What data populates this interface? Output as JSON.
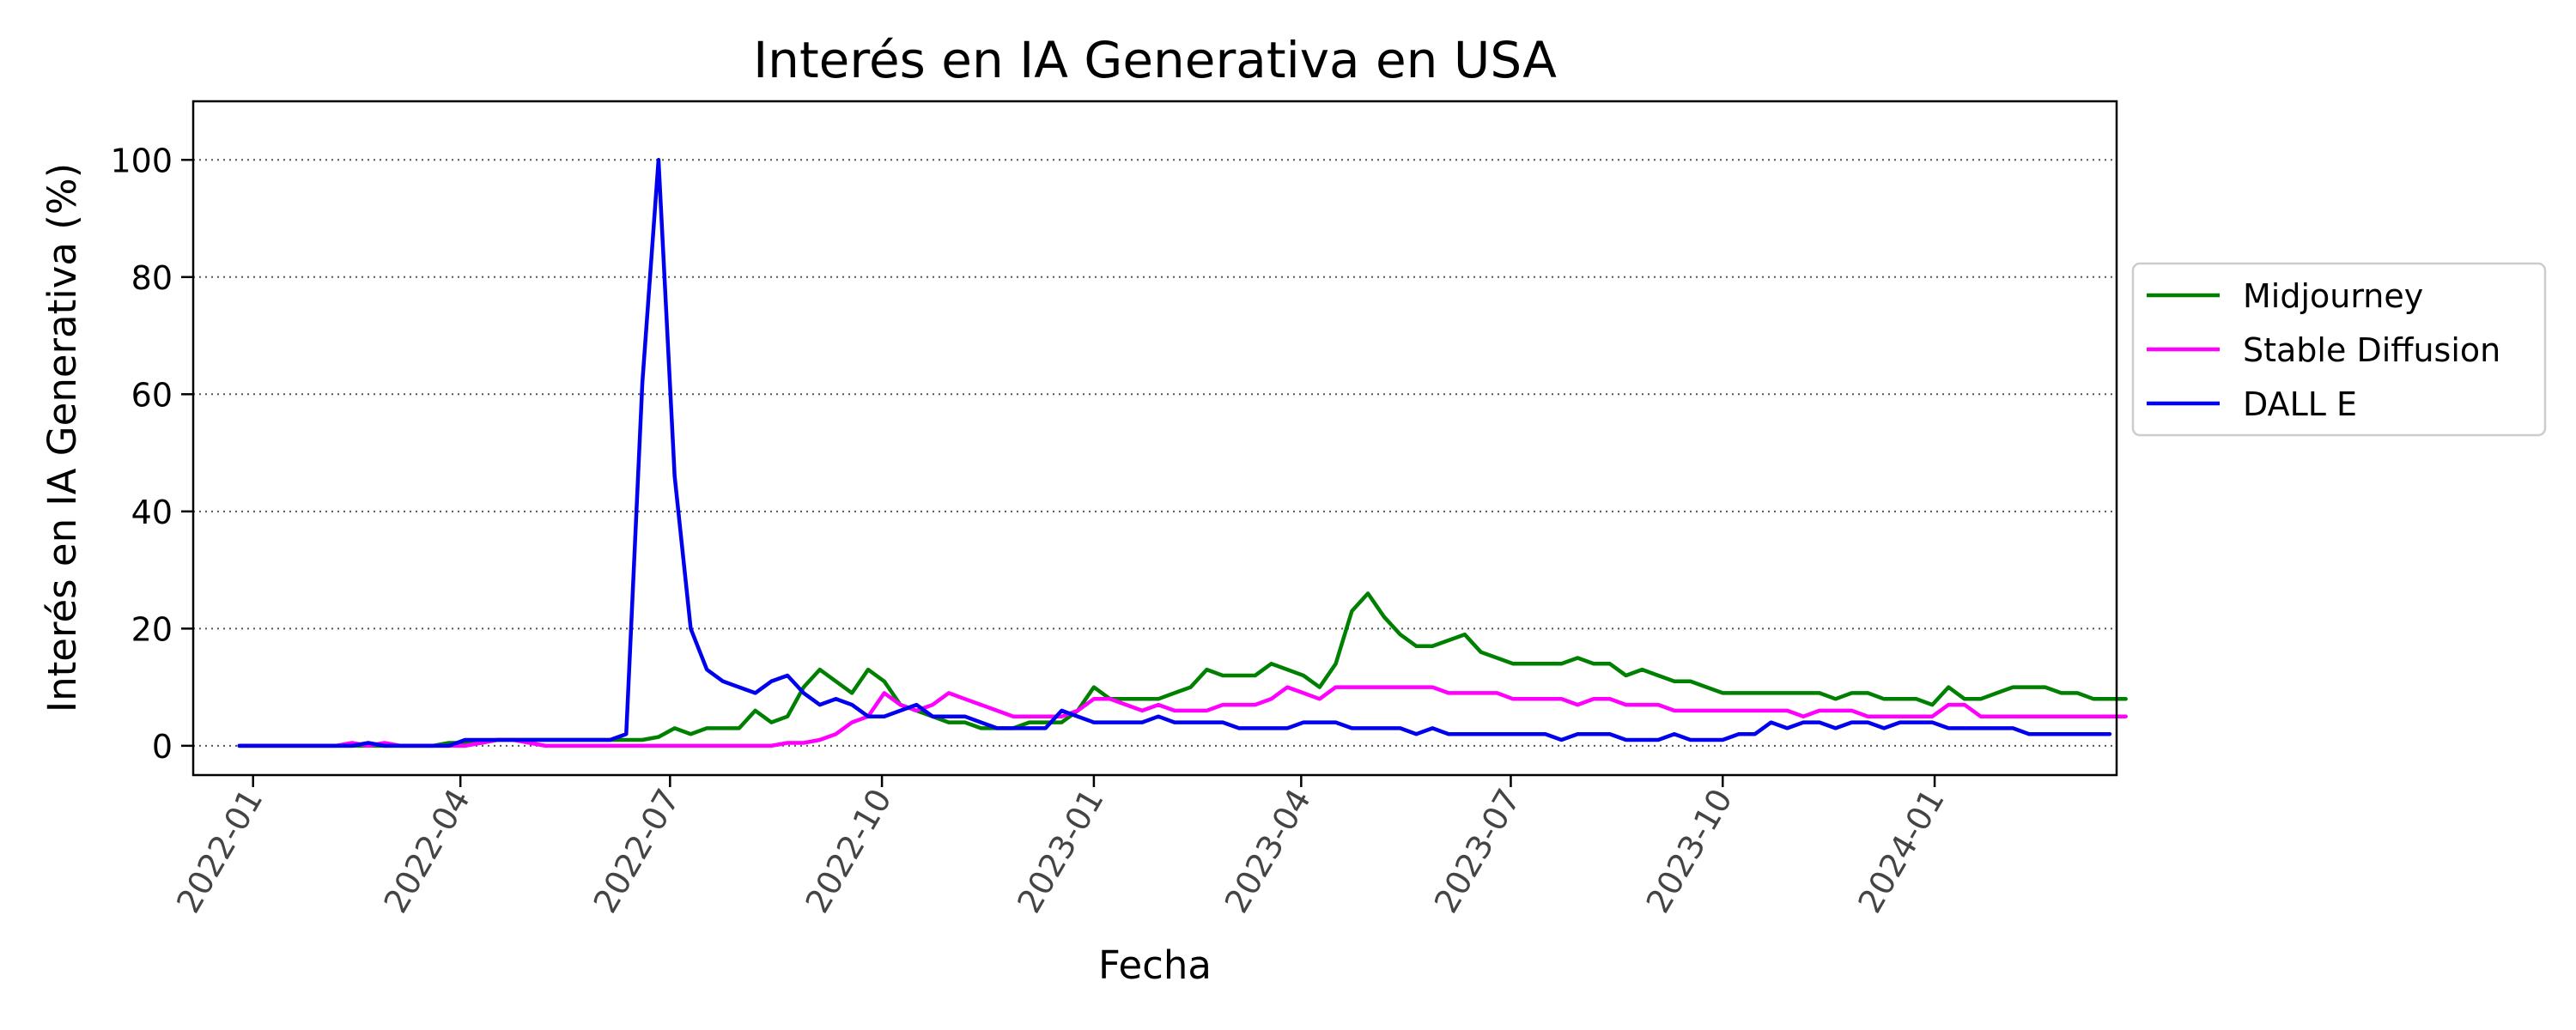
{
  "chart_data": {
    "type": "line",
    "title": "Interés en IA Generativa en USA",
    "xlabel": "Fecha",
    "ylabel": "Interés en IA Generativa (%)",
    "ylim": [
      -5,
      110
    ],
    "xlim": [
      "2021-12-06",
      "2024-03-20"
    ],
    "grid": "y-dotted",
    "legend_placement": "right-outside",
    "x_ticks": [
      "2022-01",
      "2022-04",
      "2022-07",
      "2022-10",
      "2023-01",
      "2023-04",
      "2023-07",
      "2023-10",
      "2024-01"
    ],
    "y_ticks": [
      0,
      20,
      40,
      60,
      80,
      100
    ],
    "start_date": "2021-12-26",
    "step_days": 7,
    "series": [
      {
        "name": "Midjourney",
        "color": "#008000",
        "values": [
          0,
          0,
          0,
          0,
          0,
          0,
          0,
          0,
          0,
          0,
          0,
          0,
          0,
          0.5,
          0.5,
          0.5,
          1,
          1,
          1,
          1,
          1,
          1,
          1,
          1,
          1,
          1,
          1.5,
          3,
          2,
          3,
          3,
          3,
          6,
          4,
          5,
          10,
          13,
          11,
          9,
          13,
          11,
          7,
          6,
          5,
          4,
          4,
          3,
          3,
          3,
          4,
          4,
          4,
          6,
          10,
          8,
          8,
          8,
          8,
          9,
          10,
          13,
          12,
          12,
          12,
          14,
          13,
          12,
          10,
          14,
          23,
          26,
          22,
          19,
          17,
          17,
          18,
          19,
          16,
          15,
          14,
          14,
          14,
          14,
          15,
          14,
          14,
          12,
          13,
          12,
          11,
          11,
          10,
          9,
          9,
          9,
          9,
          9,
          9,
          9,
          8,
          9,
          9,
          8,
          8,
          8,
          7,
          10,
          8,
          8,
          9,
          10,
          10,
          10,
          9,
          9,
          8,
          8,
          8
        ]
      },
      {
        "name": "Stable Diffusion",
        "color": "#ff00ff",
        "values": [
          0,
          0,
          0,
          0,
          0,
          0,
          0,
          0.5,
          0,
          0.5,
          0,
          0,
          0,
          0,
          0,
          0.5,
          1,
          1,
          0.5,
          0,
          0,
          0,
          0,
          0,
          0,
          0,
          0,
          0,
          0,
          0,
          0,
          0,
          0,
          0,
          0.5,
          0.5,
          1,
          2,
          4,
          5,
          9,
          7,
          6,
          7,
          9,
          8,
          7,
          6,
          5,
          5,
          5,
          5,
          6,
          8,
          8,
          7,
          6,
          7,
          6,
          6,
          6,
          7,
          7,
          7,
          8,
          10,
          9,
          8,
          10,
          10,
          10,
          10,
          10,
          10,
          10,
          9,
          9,
          9,
          9,
          8,
          8,
          8,
          8,
          7,
          8,
          8,
          7,
          7,
          7,
          6,
          6,
          6,
          6,
          6,
          6,
          6,
          6,
          5,
          6,
          6,
          6,
          5,
          5,
          5,
          5,
          5,
          7,
          7,
          5,
          5,
          5,
          5,
          5,
          5,
          5,
          5,
          5,
          5
        ]
      },
      {
        "name": "DALL E",
        "color": "#0000ee",
        "values": [
          0,
          0,
          0,
          0,
          0,
          0,
          0,
          0,
          0.5,
          0,
          0,
          0,
          0,
          0,
          1,
          1,
          1,
          1,
          1,
          1,
          1,
          1,
          1,
          1,
          2,
          62,
          100,
          46,
          20,
          13,
          11,
          10,
          9,
          11,
          12,
          9,
          7,
          8,
          7,
          5,
          5,
          6,
          7,
          5,
          5,
          5,
          4,
          3,
          3,
          3,
          3,
          6,
          5,
          4,
          4,
          4,
          4,
          5,
          4,
          4,
          4,
          4,
          3,
          3,
          3,
          3,
          4,
          4,
          4,
          3,
          3,
          3,
          3,
          2,
          3,
          2,
          2,
          2,
          2,
          2,
          2,
          2,
          1,
          2,
          2,
          2,
          1,
          1,
          1,
          2,
          1,
          1,
          1,
          2,
          2,
          4,
          3,
          4,
          4,
          3,
          4,
          4,
          3,
          4,
          4,
          4,
          3,
          3,
          3,
          3,
          3,
          2,
          2,
          2,
          2,
          2,
          2
        ]
      }
    ]
  }
}
